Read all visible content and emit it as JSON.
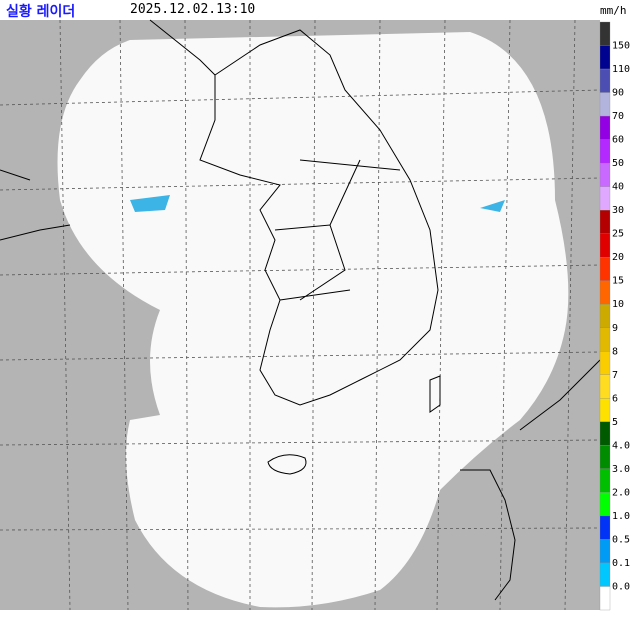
{
  "header": {
    "title": "실황 레이더",
    "time": "2025.12.02.13:10",
    "unit": "mm/h"
  },
  "legend": {
    "labels": [
      "150",
      "110",
      "90",
      "70",
      "60",
      "50",
      "40",
      "30",
      "25",
      "20",
      "15",
      "10",
      "9",
      "8",
      "7",
      "6",
      "5",
      "4.0",
      "3.0",
      "2.0",
      "1.0",
      "0.5",
      "0.1",
      "0.0"
    ],
    "colors": [
      "#333333",
      "#000390",
      "#4c4eb1",
      "#b3b4de",
      "#9300e4",
      "#b329ff",
      "#c969ff",
      "#e0a9ff",
      "#b40000",
      "#e00000",
      "#ff3300",
      "#ff6600",
      "#ccaa00",
      "#e0b900",
      "#f9cd00",
      "#ffdc1f",
      "#ffe100",
      "#005a00",
      "#008c00",
      "#00be00",
      "#00ff00",
      "#0033f5",
      "#009bf5",
      "#00c8ff",
      "#ffffff"
    ]
  }
}
